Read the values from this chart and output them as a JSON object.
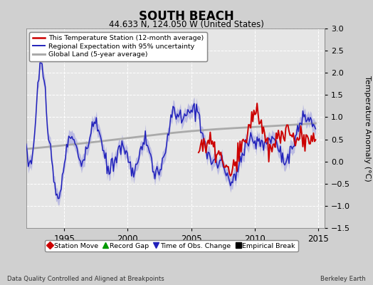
{
  "title": "SOUTH BEACH",
  "subtitle": "44.633 N, 124.050 W (United States)",
  "ylabel": "Temperature Anomaly (°C)",
  "xlabel_left": "Data Quality Controlled and Aligned at Breakpoints",
  "xlabel_right": "Berkeley Earth",
  "xlim": [
    1992.0,
    2015.5
  ],
  "ylim": [
    -1.5,
    3.0
  ],
  "yticks": [
    -1.5,
    -1.0,
    -0.5,
    0.0,
    0.5,
    1.0,
    1.5,
    2.0,
    2.5,
    3.0
  ],
  "xticks": [
    1995,
    2000,
    2005,
    2010,
    2015
  ],
  "bg_color": "#d0d0d0",
  "plot_bg_color": "#e6e6e6",
  "grid_color": "#ffffff",
  "regional_line_color": "#2222bb",
  "regional_fill_color": "#9999dd",
  "station_line_color": "#cc0000",
  "global_line_color": "#aaaaaa",
  "legend1_items": [
    {
      "label": "This Temperature Station (12-month average)",
      "color": "#cc0000",
      "lw": 2.0
    },
    {
      "label": "Regional Expectation with 95% uncertainty",
      "color": "#2222bb",
      "lw": 1.5
    },
    {
      "label": "Global Land (5-year average)",
      "color": "#aaaaaa",
      "lw": 2.5
    }
  ],
  "legend2_items": [
    {
      "label": "Station Move",
      "color": "#cc0000",
      "marker": "D"
    },
    {
      "label": "Record Gap",
      "color": "#009900",
      "marker": "^"
    },
    {
      "label": "Time of Obs. Change",
      "color": "#2222bb",
      "marker": "v"
    },
    {
      "label": "Empirical Break",
      "color": "#000000",
      "marker": "s"
    }
  ]
}
